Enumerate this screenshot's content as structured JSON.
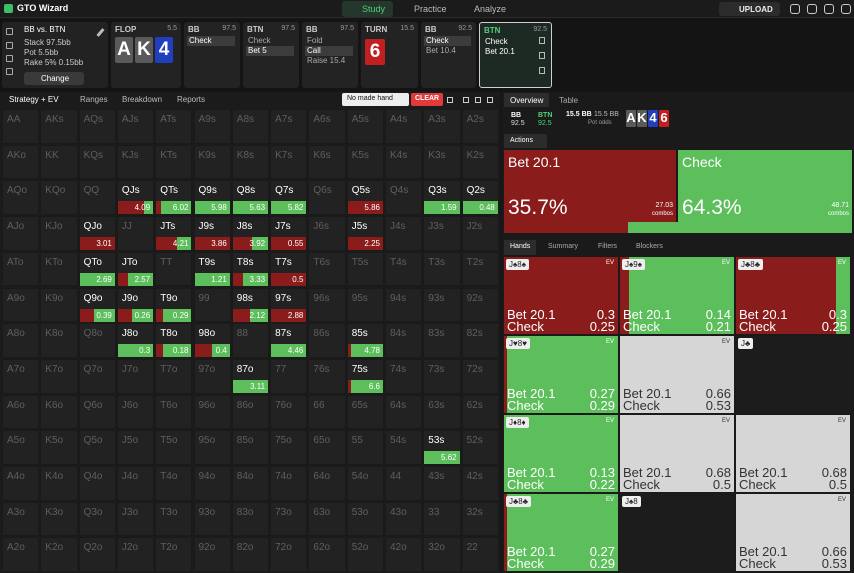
{
  "nav": {
    "logo": "GTO Wizard",
    "tabs": [
      "Study",
      "Practice",
      "Analyze"
    ],
    "upload": "UPLOAD"
  },
  "info": {
    "matchup": "BB vs. BTN",
    "stack": "Stack 97.5bb",
    "pot": "Pot 5.5bb",
    "rake": "Rake 5% 0.15bb",
    "button": "Change"
  },
  "streets": [
    {
      "player": "FLOP",
      "stack": 5.5,
      "cards": [
        {
          "rank": "A",
          "color": "#5a5a5a"
        },
        {
          "rank": "K",
          "color": "#5a5a5a"
        },
        {
          "rank": "4",
          "color": "#1f3fbf"
        }
      ]
    },
    {
      "player": "BB",
      "stack": 97.5,
      "actions": [
        "Check"
      ],
      "selected": 0
    },
    {
      "player": "BTN",
      "stack": 97.5,
      "actions": [
        "Check",
        "Bet 5"
      ],
      "selected": 1
    },
    {
      "player": "BB",
      "stack": 97.5,
      "actions": [
        "Fold",
        "Call",
        "Raise 15.4"
      ],
      "selected": 1
    },
    {
      "player": "TURN",
      "stack": 15.5,
      "cards": [
        {
          "rank": "6",
          "color": "#c0201f"
        }
      ]
    },
    {
      "player": "BB",
      "stack": 92.5,
      "actions": [
        "Check",
        "Bet 10.4"
      ],
      "selected": 0
    },
    {
      "player": "BTN",
      "stack": 92.5,
      "actions": [
        "Check",
        "Bet 20.1"
      ],
      "active": true
    }
  ],
  "toolbar": {
    "strategy": "Strategy + EV",
    "tabs": [
      "Ranges",
      "Breakdown",
      "Reports"
    ],
    "filter": "No made hand",
    "clear": "CLEAR"
  },
  "grid": {
    "rows": [
      [
        "AA",
        "AKs",
        "AQs",
        "AJs",
        "ATs",
        "A9s",
        "A8s",
        "A7s",
        "A6s",
        "A5s",
        "A4s",
        "A3s",
        "A2s"
      ],
      [
        "AKo",
        "KK",
        "KQs",
        "KJs",
        "KTs",
        "K9s",
        "K8s",
        "K7s",
        "K6s",
        "K5s",
        "K4s",
        "K3s",
        "K2s"
      ],
      [
        "AQo",
        "KQo",
        "QQ",
        "QJs",
        "QTs",
        "Q9s",
        "Q8s",
        "Q7s",
        "Q6s",
        "Q5s",
        "Q4s",
        "Q3s",
        "Q2s"
      ],
      [
        "AJo",
        "KJo",
        "QJo",
        "JJ",
        "JTs",
        "J9s",
        "J8s",
        "J7s",
        "J6s",
        "J5s",
        "J4s",
        "J3s",
        "J2s"
      ],
      [
        "ATo",
        "KTo",
        "QTo",
        "JTo",
        "TT",
        "T9s",
        "T8s",
        "T7s",
        "T6s",
        "T5s",
        "T4s",
        "T3s",
        "T2s"
      ],
      [
        "A9o",
        "K9o",
        "Q9o",
        "J9o",
        "T9o",
        "99",
        "98s",
        "97s",
        "96s",
        "95s",
        "94s",
        "93s",
        "92s"
      ],
      [
        "A8o",
        "K8o",
        "Q8o",
        "J8o",
        "T8o",
        "98o",
        "88",
        "87s",
        "86s",
        "85s",
        "84s",
        "83s",
        "82s"
      ],
      [
        "A7o",
        "K7o",
        "Q7o",
        "J7o",
        "T7o",
        "97o",
        "87o",
        "77",
        "76s",
        "75s",
        "74s",
        "73s",
        "72s"
      ],
      [
        "A6o",
        "K6o",
        "Q6o",
        "J6o",
        "T6o",
        "96o",
        "86o",
        "76o",
        "66",
        "65s",
        "64s",
        "63s",
        "62s"
      ],
      [
        "A5o",
        "K5o",
        "Q5o",
        "J5o",
        "T5o",
        "95o",
        "85o",
        "75o",
        "65o",
        "55",
        "54s",
        "53s",
        "52s"
      ],
      [
        "A4o",
        "K4o",
        "Q4o",
        "J4o",
        "T4o",
        "94o",
        "84o",
        "74o",
        "64o",
        "54o",
        "44",
        "43s",
        "42s"
      ],
      [
        "A3o",
        "K3o",
        "Q3o",
        "J3o",
        "T3o",
        "93o",
        "83o",
        "73o",
        "63o",
        "53o",
        "43o",
        "33",
        "32s"
      ],
      [
        "A2o",
        "K2o",
        "Q2o",
        "J2o",
        "T2o",
        "92o",
        "82o",
        "72o",
        "62o",
        "52o",
        "42o",
        "32o",
        "22"
      ]
    ],
    "cells": [
      {
        "hand": "QJs",
        "bet": 75,
        "ev": 4.09
      },
      {
        "hand": "QTs",
        "bet": 15,
        "ev": 6.02
      },
      {
        "hand": "Q9s",
        "bet": 0,
        "ev": 5.98
      },
      {
        "hand": "Q8s",
        "bet": 0,
        "ev": 5.63
      },
      {
        "hand": "Q7s",
        "bet": 0,
        "ev": 5.82
      },
      {
        "hand": "Q5s",
        "bet": 100,
        "ev": 5.86
      },
      {
        "hand": "Q3s",
        "bet": 0,
        "ev": 1.59
      },
      {
        "hand": "Q2s",
        "bet": 0,
        "ev": 0.48
      },
      {
        "hand": "QJo",
        "bet": 100,
        "ev": 3.01
      },
      {
        "hand": "JTs",
        "bet": 60,
        "ev": 4.21
      },
      {
        "hand": "J9s",
        "bet": 100,
        "ev": 3.86
      },
      {
        "hand": "J8s",
        "bet": 55,
        "ev": 3.92
      },
      {
        "hand": "J7s",
        "bet": 100,
        "ev": 0.55
      },
      {
        "hand": "J5s",
        "bet": 100,
        "ev": 2.25
      },
      {
        "hand": "QTo",
        "bet": 0,
        "ev": 2.69
      },
      {
        "hand": "JTo",
        "bet": 30,
        "ev": 2.57
      },
      {
        "hand": "T9s",
        "bet": 0,
        "ev": 1.21
      },
      {
        "hand": "T8s",
        "bet": 30,
        "ev": 3.33
      },
      {
        "hand": "T7s",
        "bet": 100,
        "ev": 0.5
      },
      {
        "hand": "Q9o",
        "bet": 40,
        "ev": 0.39
      },
      {
        "hand": "J9o",
        "bet": 40,
        "ev": 0.26
      },
      {
        "hand": "T9o",
        "bet": 20,
        "ev": 0.29
      },
      {
        "hand": "98s",
        "bet": 50,
        "ev": 2.12
      },
      {
        "hand": "97s",
        "bet": 100,
        "ev": 2.88
      },
      {
        "hand": "J8o",
        "bet": 0,
        "ev": 0.3
      },
      {
        "hand": "T8o",
        "bet": 20,
        "ev": 0.18
      },
      {
        "hand": "98o",
        "bet": 50,
        "ev": 0.4
      },
      {
        "hand": "87s",
        "bet": 0,
        "ev": 4.46
      },
      {
        "hand": "85s",
        "bet": 10,
        "ev": 4.78
      },
      {
        "hand": "87o",
        "bet": 0,
        "ev": 3.11
      },
      {
        "hand": "75s",
        "bet": 10,
        "ev": 6.6
      },
      {
        "hand": "53s",
        "bet": 0,
        "ev": 5.62
      }
    ]
  },
  "right": {
    "tabs": [
      "Overview",
      "Table"
    ],
    "players": [
      {
        "name": "BB",
        "stack": 92.5
      },
      {
        "name": "BTN",
        "stack": 92.5
      }
    ],
    "pot": "15.5 BB",
    "pot2": "15.5 BB",
    "pot_odds_label": "Pot odds",
    "pot_odds": "-",
    "board": [
      {
        "rank": "A",
        "color": "#5a5a5a"
      },
      {
        "rank": "K",
        "color": "#5a5a5a"
      },
      {
        "rank": "4",
        "color": "#1f3fbf"
      },
      {
        "rank": "6",
        "color": "#c0201f"
      }
    ],
    "actions_label": "Actions",
    "actions": [
      {
        "name": "Bet 20.1",
        "pct": 35.7,
        "pct_label": "35.7%",
        "combos": 27.03,
        "color": "#8b1c1c"
      },
      {
        "name": "Check",
        "pct": 64.3,
        "pct_label": "64.3%",
        "combos": 48.71,
        "color": "#5cbf5c"
      }
    ],
    "combos_label": "combos",
    "hand_tabs": [
      "Hands",
      "Summary",
      "Filters",
      "Blockers"
    ],
    "ev_label": "EV",
    "combos": [
      {
        "label": "J♠8♠",
        "in_range": true,
        "bet": 100,
        "bet_ev": 0.3,
        "check_ev": 0.25
      },
      {
        "label": "J♠9♠",
        "in_range": true,
        "bet": 8,
        "bet_ev": 0.14,
        "check_ev": 0.21
      },
      {
        "label": "J♣8♣",
        "in_range": true,
        "bet": 88,
        "bet_ev": 0.3,
        "check_ev": 0.25
      },
      {
        "label": "J♥8♥",
        "in_range": true,
        "bet": 3,
        "bet_ev": 0.27,
        "check_ev": 0.29
      },
      {
        "in_range": false,
        "bet_ev": 0.66,
        "check_ev": 0.53
      },
      {
        "label": "J♣",
        "empty": true
      },
      {
        "label": "J♦8♦",
        "in_range": true,
        "bet": 0,
        "bet_ev": 0.13,
        "check_ev": 0.22
      },
      {
        "in_range": false,
        "bet_ev": 0.68,
        "check_ev": 0.5
      },
      {
        "in_range": false,
        "bet_ev": 0.68,
        "check_ev": 0.5
      },
      {
        "label": "J♣8♣",
        "in_range": true,
        "bet": 3,
        "bet_ev": 0.27,
        "check_ev": 0.29
      },
      {
        "label": "J♠8",
        "empty": true
      },
      {
        "in_range": false,
        "bet_ev": 0.66,
        "check_ev": 0.53
      }
    ]
  }
}
